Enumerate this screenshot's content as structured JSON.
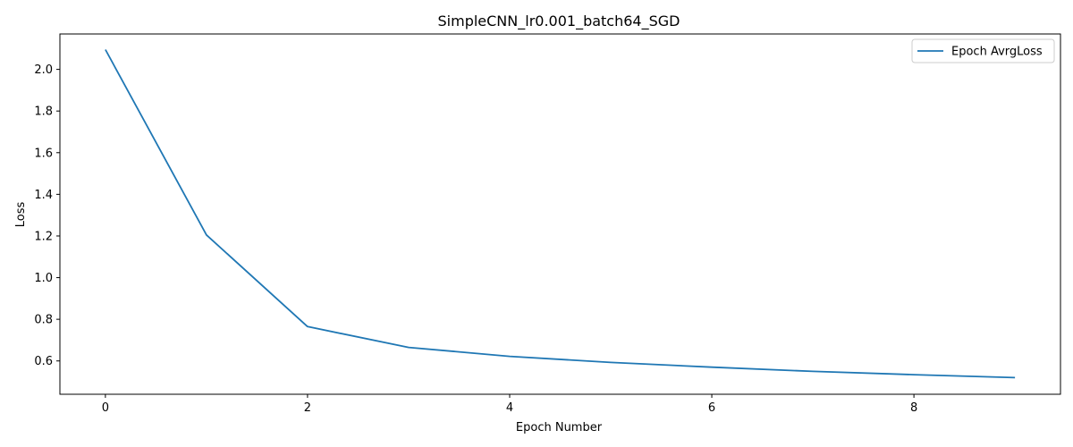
{
  "chart_data": {
    "type": "line",
    "title": "SimpleCNN_lr0.001_batch64_SGD",
    "xlabel": "Epoch Number",
    "ylabel": "Loss",
    "xlim": [
      -0.45,
      9.45
    ],
    "ylim": [
      0.44,
      2.17
    ],
    "xticks": [
      0,
      2,
      4,
      6,
      8
    ],
    "xtick_labels": [
      "0",
      "2",
      "4",
      "6",
      "8"
    ],
    "yticks": [
      0.6,
      0.8,
      1.0,
      1.2,
      1.4,
      1.6,
      1.8,
      2.0
    ],
    "ytick_labels": [
      "0.6",
      "0.8",
      "1.0",
      "1.2",
      "1.4",
      "1.6",
      "1.8",
      "2.0"
    ],
    "grid": false,
    "legend_position": "top-right",
    "series": [
      {
        "name": "Epoch AvrgLoss",
        "color": "#1f77b4",
        "x": [
          0,
          1,
          2,
          3,
          4,
          5,
          6,
          7,
          8,
          9
        ],
        "y": [
          2.095,
          1.205,
          0.765,
          0.665,
          0.622,
          0.593,
          0.57,
          0.55,
          0.534,
          0.52
        ]
      }
    ]
  }
}
